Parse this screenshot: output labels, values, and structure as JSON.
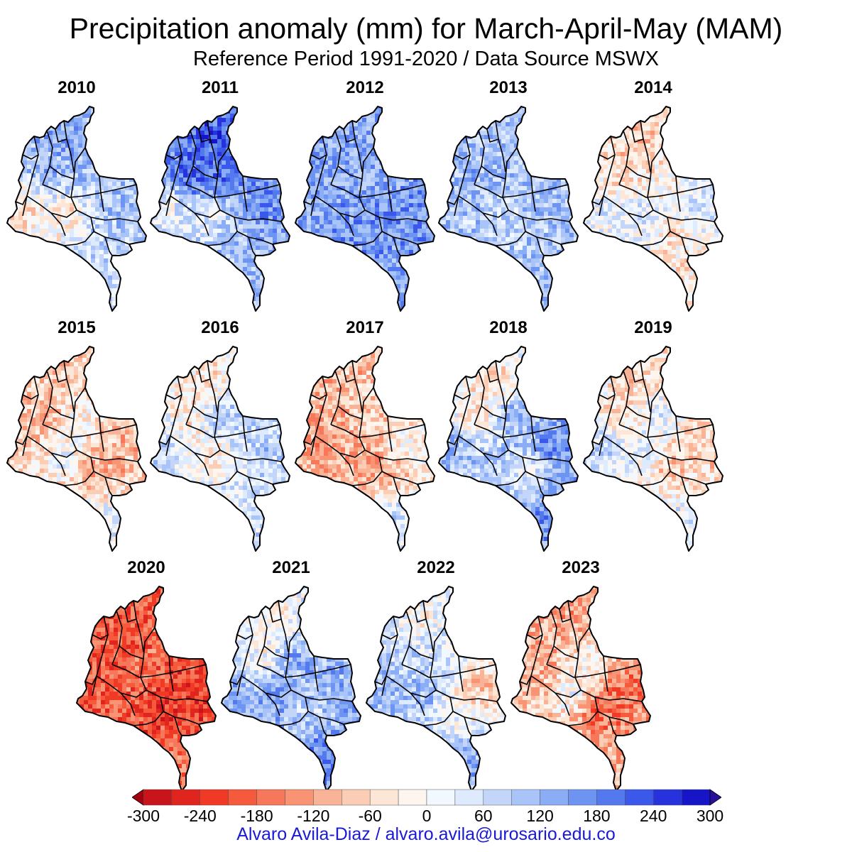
{
  "title": "Precipitation anomaly (mm) for March-April-May (MAM)",
  "subtitle": "Reference Period 1991-2020 / Data Source MSWX",
  "panels": [
    {
      "year": "2010",
      "pattern": [
        0.55,
        0.55,
        0.35,
        0.45,
        -0.35,
        -0.4,
        0.3,
        0.2
      ]
    },
    {
      "year": "2011",
      "pattern": [
        0.75,
        0.85,
        0.7,
        0.65,
        -0.15,
        -0.1,
        0.3,
        0.35
      ]
    },
    {
      "year": "2012",
      "pattern": [
        0.4,
        0.45,
        0.35,
        0.55,
        0.4,
        0.5,
        0.55,
        0.45
      ]
    },
    {
      "year": "2013",
      "pattern": [
        0.3,
        0.45,
        0.3,
        0.4,
        0.3,
        0.15,
        0.25,
        0.35
      ]
    },
    {
      "year": "2014",
      "pattern": [
        -0.3,
        -0.25,
        -0.1,
        0.3,
        0.15,
        0.35,
        -0.3,
        -0.1
      ]
    },
    {
      "year": "2015",
      "pattern": [
        -0.3,
        -0.4,
        0.1,
        -0.35,
        -0.25,
        0.35,
        -0.65,
        0.2
      ]
    },
    {
      "year": "2016",
      "pattern": [
        -0.25,
        -0.3,
        0.55,
        0.4,
        0.35,
        -0.3,
        0.1,
        0.2
      ]
    },
    {
      "year": "2017",
      "pattern": [
        -0.3,
        -0.35,
        -0.2,
        0.1,
        -0.4,
        -0.35,
        -0.5,
        0.3
      ]
    },
    {
      "year": "2018",
      "pattern": [
        -0.3,
        -0.45,
        0.6,
        0.7,
        0.5,
        0.35,
        -0.1,
        0.6
      ]
    },
    {
      "year": "2019",
      "pattern": [
        -0.25,
        -0.35,
        0.3,
        -0.3,
        0.35,
        0.25,
        -0.45,
        0.2
      ]
    },
    {
      "year": "2020",
      "pattern": [
        -0.6,
        -0.7,
        -0.5,
        -0.75,
        -0.6,
        -0.5,
        -0.85,
        -0.5
      ]
    },
    {
      "year": "2021",
      "pattern": [
        -0.2,
        -0.25,
        0.55,
        0.45,
        0.5,
        0.6,
        0.1,
        0.65
      ]
    },
    {
      "year": "2022",
      "pattern": [
        -0.1,
        0.2,
        0.25,
        -0.45,
        0.45,
        0.6,
        -0.2,
        0.5
      ]
    },
    {
      "year": "2023",
      "pattern": [
        -0.45,
        -0.5,
        0.25,
        -0.65,
        -0.35,
        0.4,
        -0.85,
        -0.3
      ]
    }
  ],
  "colorbar": {
    "ticks": [
      "-300",
      "-240",
      "-180",
      "-120",
      "-60",
      "0",
      "60",
      "120",
      "180",
      "240",
      "300"
    ],
    "colors": [
      "#a50010",
      "#c8141a",
      "#e0241e",
      "#f03a26",
      "#f55a3c",
      "#f7775a",
      "#f89474",
      "#f9b396",
      "#fbcdb5",
      "#fde6d6",
      "#fef6ee",
      "#f1f8ff",
      "#deeafd",
      "#c3d6fa",
      "#a9c4f8",
      "#8aadf5",
      "#6e94f1",
      "#5479ee",
      "#3a58ea",
      "#2633dd",
      "#1616c8",
      "#2a0f9e"
    ]
  },
  "credit": "Alvaro Avila-Diaz / alvaro.avila@urosario.edu.co"
}
